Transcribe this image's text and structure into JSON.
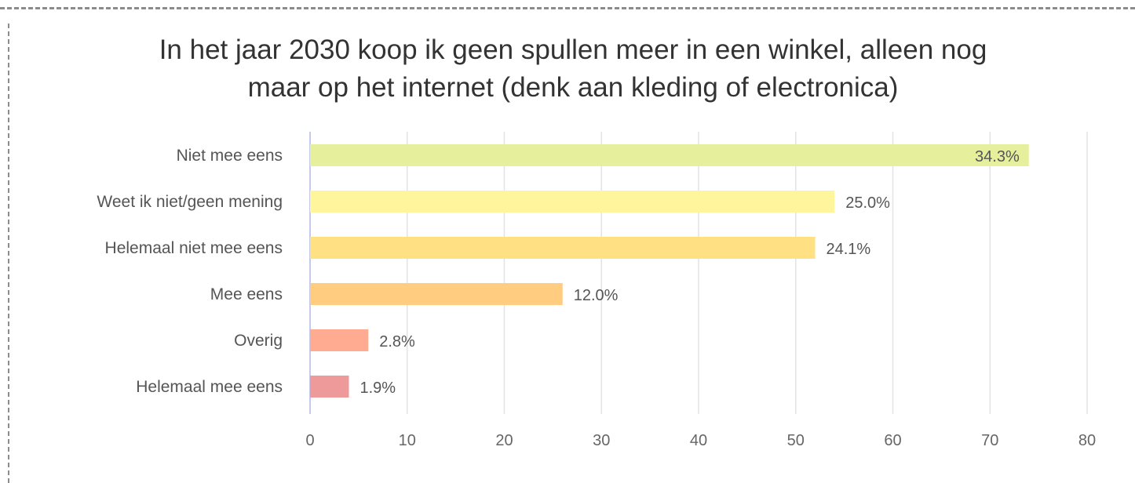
{
  "chart_data": {
    "type": "bar",
    "orientation": "horizontal",
    "title_lines": [
      "In het jaar 2030 koop ik geen spullen meer in een winkel, alleen nog",
      "maar op het internet (denk aan kleding of electronica)"
    ],
    "categories": [
      "Niet mee eens",
      "Weet ik niet/geen mening",
      "Helemaal niet mee eens",
      "Mee eens",
      "Overig",
      "Helemaal mee eens"
    ],
    "values": [
      74,
      54,
      52,
      26,
      6,
      4
    ],
    "value_labels": [
      "34.3%",
      "25.0%",
      "24.1%",
      "12.0%",
      "2.8%",
      "1.9%"
    ],
    "colors": [
      "#e6ef9c",
      "#fff59d",
      "#ffe082",
      "#ffcc80",
      "#ffab91",
      "#ef9a9a"
    ],
    "xlim": [
      0,
      80
    ],
    "xticks": [
      "0",
      "10",
      "20",
      "30",
      "40",
      "50",
      "60",
      "70",
      "80"
    ],
    "grid": true
  }
}
